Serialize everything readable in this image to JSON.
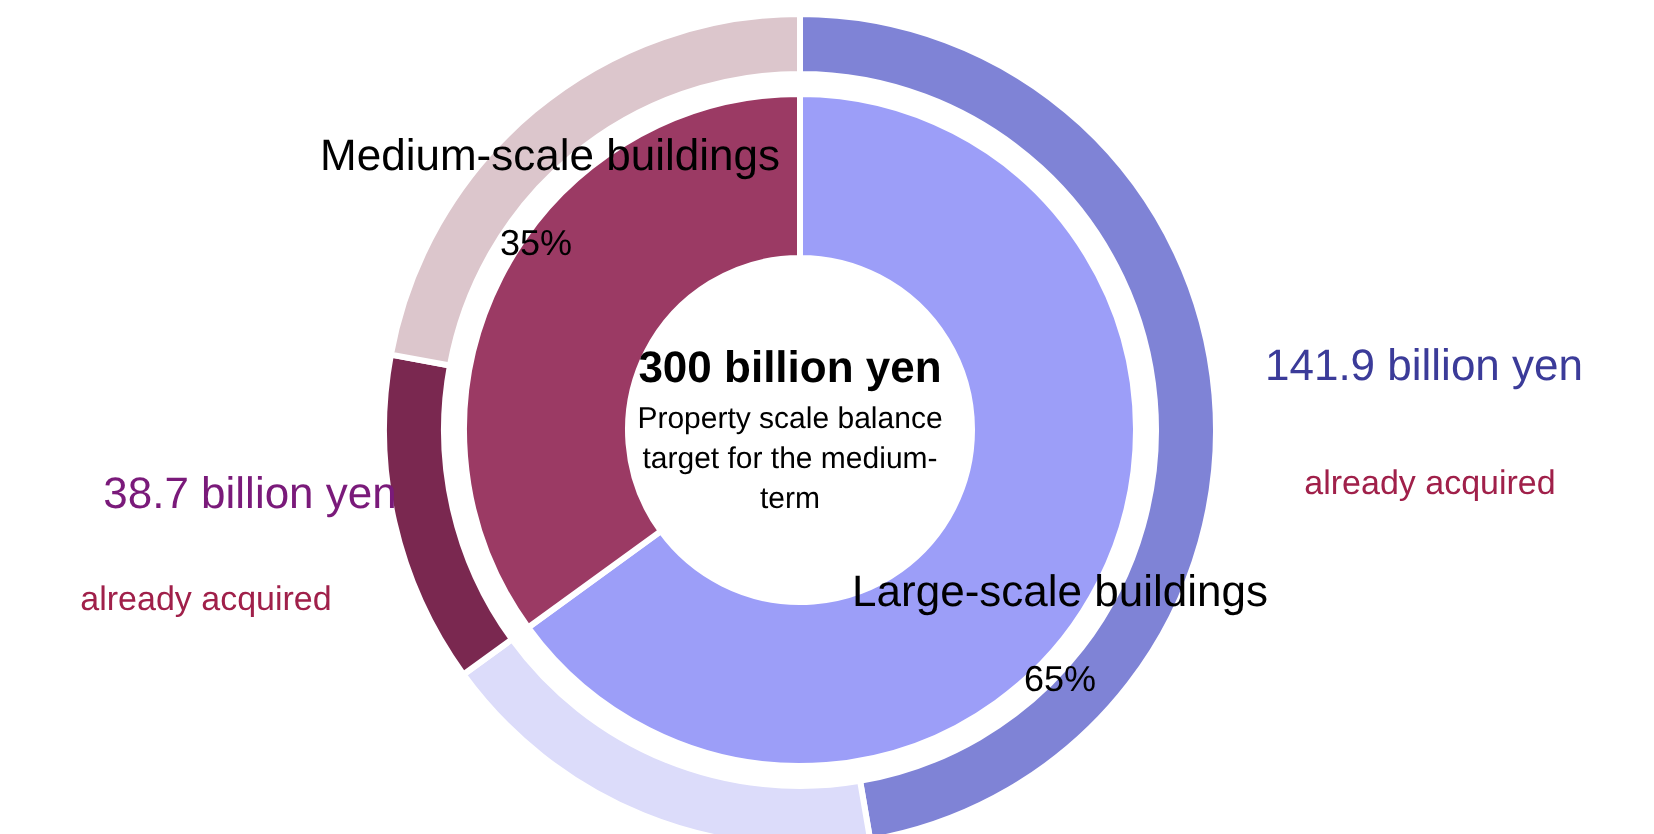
{
  "chart_data": [
    {
      "type": "donut",
      "categories": [
        "already acquired",
        null,
        "already acquired",
        null
      ],
      "values": [
        141.9,
        53.1,
        38.7,
        66.3
      ],
      "value_labels": [
        "141.9 billion yen",
        null,
        "38.7 billion yen",
        null
      ],
      "colors": [
        "#7f83d6",
        "#dcdcfa",
        "#7a2850",
        "#dcc6cc"
      ]
    },
    {
      "type": "donut",
      "title": "300 billion yen",
      "subtitle": "Property scale balance target for the medium-term",
      "categories": [
        "Large-scale buildings",
        "Medium-scale buildings"
      ],
      "values": [
        65,
        35
      ],
      "value_labels": [
        "65%",
        "35%"
      ],
      "colors": [
        "#9c9ef8",
        "#9b3a64"
      ]
    }
  ]
}
